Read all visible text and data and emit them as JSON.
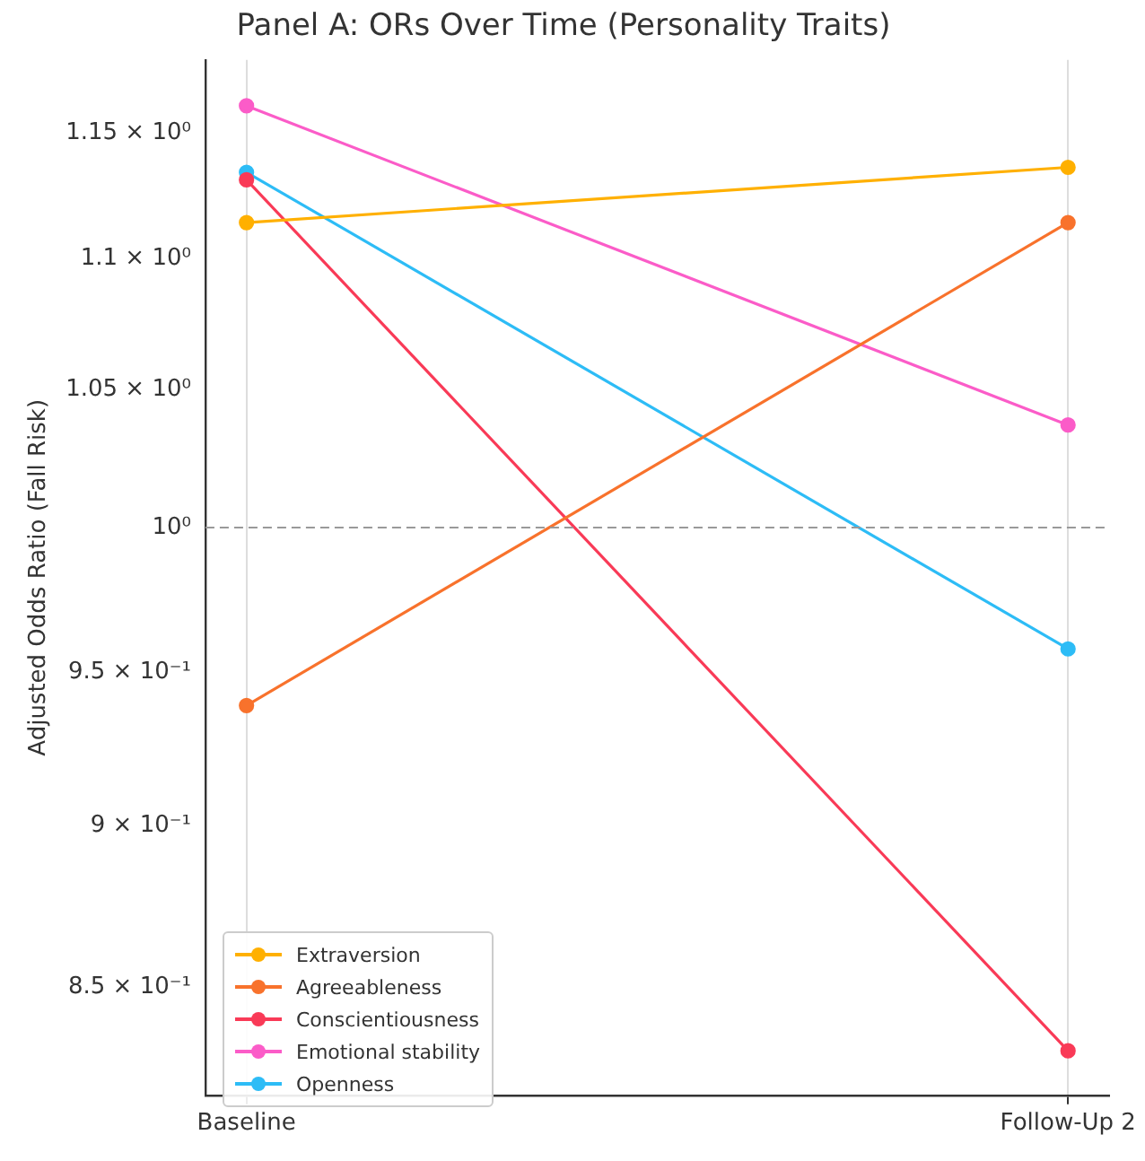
{
  "chart_data": {
    "type": "line",
    "title": "Panel A: ORs Over Time (Personality Traits)",
    "ylabel": "Adjusted Odds Ratio (Fall Risk)",
    "categories": [
      "Baseline",
      "Follow-Up 2"
    ],
    "series": [
      {
        "name": "Extraversion",
        "color": "#ffb000",
        "values": [
          1.114,
          1.136
        ]
      },
      {
        "name": "Agreeableness",
        "color": "#f8722c",
        "values": [
          0.939,
          1.114
        ]
      },
      {
        "name": "Conscientiousness",
        "color": "#f93a57",
        "values": [
          1.131,
          0.831
        ]
      },
      {
        "name": "Emotional stability",
        "color": "#fb5cc8",
        "values": [
          1.161,
          1.037
        ]
      },
      {
        "name": "Openness",
        "color": "#2dbcf6",
        "values": [
          1.134,
          0.958
        ]
      }
    ],
    "log": "y",
    "ylim": [
      0.818,
      1.18
    ],
    "yticks": [
      {
        "value": 0.85,
        "label": "8.5 × 10⁻¹"
      },
      {
        "value": 0.9,
        "label": "9 × 10⁻¹"
      },
      {
        "value": 0.95,
        "label": "9.5 × 10⁻¹"
      },
      {
        "value": 1,
        "label": "10⁰"
      },
      {
        "value": 1.05,
        "label": "1.05 × 10⁰"
      },
      {
        "value": 1.1,
        "label": "1.1 × 10⁰"
      },
      {
        "value": 1.15,
        "label": "1.15 × 10⁰"
      }
    ],
    "ref_lines": [
      {
        "axis": "y",
        "value": 1,
        "color": "#999999",
        "line_style": "dashed"
      }
    ],
    "grid": "x",
    "legend": "bottom left",
    "marker": "circle",
    "line_style": "solid"
  }
}
